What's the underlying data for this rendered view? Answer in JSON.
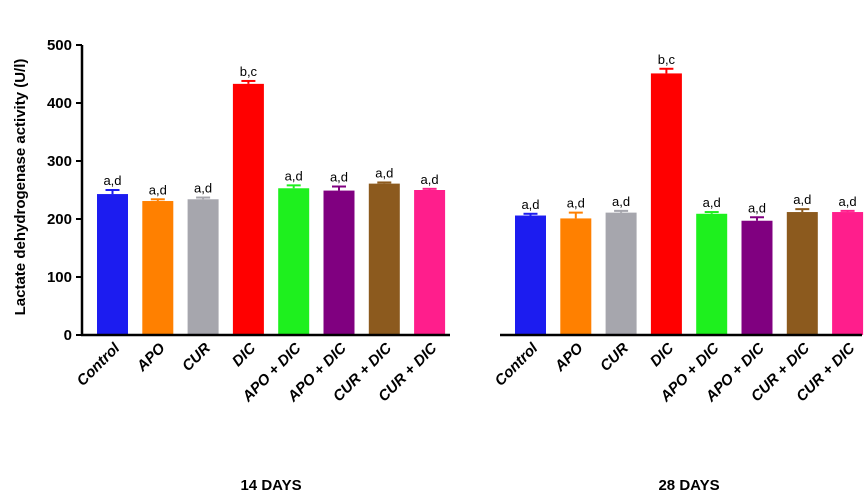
{
  "chart_data": {
    "type": "bar",
    "ylabel": "Lactate dehydrogenase activity (U/l)",
    "ylim": [
      0,
      500
    ],
    "yticks": [
      0,
      100,
      200,
      300,
      400,
      500
    ],
    "categories": [
      "Control",
      "APO",
      "CUR",
      "DIC",
      "APO + DIC",
      "APO + DIC",
      "CUR + DIC",
      "CUR + DIC"
    ],
    "colors": [
      "#1c1cf0",
      "#ff8000",
      "#a6a6ad",
      "#ff0000",
      "#1ef01e",
      "#800080",
      "#8c5a1e",
      "#ff1e8c"
    ],
    "groups": [
      {
        "label": "14 DAYS",
        "values": [
          243,
          231,
          234,
          433,
          253,
          249,
          261,
          250
        ],
        "errors": [
          7,
          3,
          3,
          5,
          5,
          7,
          2,
          2
        ],
        "annotations": [
          "a,d",
          "a,d",
          "a,d",
          "b,c",
          "a,d",
          "a,d",
          "a,d",
          "a,d"
        ]
      },
      {
        "label": "28 DAYS",
        "values": [
          206,
          201,
          211,
          451,
          209,
          197,
          212,
          212
        ],
        "errors": [
          3,
          10,
          3,
          8,
          3,
          6,
          5,
          2
        ],
        "annotations": [
          "a,d",
          "a,d",
          "a,d",
          "b,c",
          "a,d",
          "a,d",
          "a,d",
          "a,d"
        ]
      }
    ]
  }
}
